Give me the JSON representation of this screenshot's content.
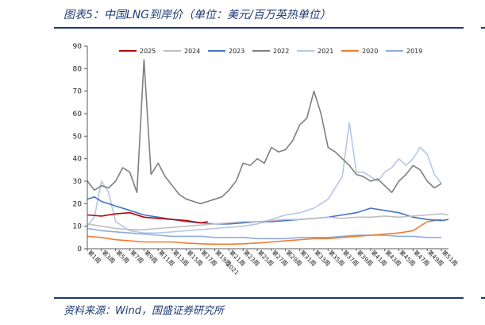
{
  "figure": {
    "title": "图表5：中国LNG到岸价（单位：美元/百万英热单位）",
    "source": "资料来源：Wind，国盛证券研究所"
  },
  "chart_data": {
    "type": "line",
    "title": "",
    "xlabel": "",
    "ylabel": "",
    "ylim": [
      0,
      90
    ],
    "yticks": [
      0,
      10,
      20,
      30,
      40,
      50,
      60,
      70,
      80,
      90
    ],
    "x": [
      1,
      3,
      5,
      7,
      9,
      11,
      13,
      15,
      17,
      19,
      21,
      23,
      25,
      27,
      29,
      31,
      33,
      35,
      37,
      39,
      41,
      43,
      45,
      47,
      49,
      51
    ],
    "x_tick_labels": [
      "第1周",
      "第3周",
      "第5周",
      "第7周",
      "第9周",
      "第11周",
      "第13周",
      "第15周",
      "第17周",
      "第19周",
      "第21周",
      "第23周",
      "第25周",
      "第27周",
      "第29周",
      "第31周",
      "第33周",
      "第35周",
      "第37周",
      "第39周",
      "第41周",
      "第43周",
      "第45周",
      "第47周",
      "第49周",
      "第51周"
    ],
    "x_overlay_text": "2021",
    "grid": false,
    "legend_position": "top",
    "series": [
      {
        "name": "2025",
        "color": "#c00000",
        "width": 1.6,
        "x": [
          1,
          3,
          5,
          7,
          9,
          11,
          13,
          15,
          17,
          18
        ],
        "values": [
          15,
          14.5,
          15.5,
          16,
          14,
          13.5,
          13,
          12.5,
          11.5,
          12
        ]
      },
      {
        "name": "2024",
        "color": "#bfbfbf",
        "width": 1.6,
        "x": [
          1,
          3,
          5,
          7,
          9,
          11,
          13,
          15,
          17,
          19,
          21,
          23,
          25,
          27,
          29,
          31,
          33,
          35,
          37,
          39,
          41,
          43,
          45,
          47,
          49,
          51,
          52
        ],
        "values": [
          11,
          10,
          9,
          8.5,
          8.5,
          9,
          9.5,
          10,
          10.5,
          11,
          11.5,
          12,
          12,
          12.5,
          13,
          13,
          13.5,
          14,
          13.5,
          14,
          14,
          14.5,
          14,
          14.5,
          15,
          15.5,
          15
        ]
      },
      {
        "name": "2023",
        "color": "#4472c4",
        "width": 1.6,
        "x": [
          1,
          2,
          3,
          5,
          7,
          9,
          11,
          13,
          15,
          17,
          19,
          21,
          23,
          25,
          27,
          29,
          31,
          33,
          35,
          37,
          39,
          41,
          43,
          45,
          47,
          49,
          51,
          52
        ],
        "values": [
          22,
          23,
          21,
          19,
          17,
          15,
          14,
          13,
          12,
          11.5,
          11,
          11,
          11.5,
          12,
          12,
          12.5,
          13,
          13.5,
          14,
          15,
          16,
          18,
          17,
          16,
          14,
          13,
          12.5,
          13
        ]
      },
      {
        "name": "2022",
        "color": "#7f7f7f",
        "width": 1.6,
        "x": [
          1,
          2,
          3,
          4,
          5,
          6,
          7,
          8,
          9,
          10,
          11,
          12,
          13,
          14,
          15,
          16,
          17,
          18,
          19,
          20,
          21,
          22,
          23,
          24,
          25,
          26,
          27,
          28,
          29,
          30,
          31,
          32,
          33,
          34,
          35,
          36,
          37,
          38,
          39,
          40,
          41,
          42,
          43,
          44,
          45,
          46,
          47,
          48,
          49,
          50,
          51
        ],
        "values": [
          30,
          26,
          28,
          27,
          30,
          36,
          34,
          25,
          84,
          33,
          38,
          32,
          28,
          24,
          22,
          21,
          20,
          21,
          22,
          23,
          26,
          30,
          38,
          37,
          40,
          38,
          45,
          43,
          44,
          48,
          55,
          58,
          70,
          60,
          45,
          43,
          40,
          37,
          33,
          32,
          30,
          31,
          28,
          25,
          30,
          33,
          37,
          35,
          30,
          27,
          29
        ]
      },
      {
        "name": "2021",
        "color": "#b4c7e7",
        "width": 1.6,
        "x": [
          1,
          2,
          3,
          4,
          5,
          7,
          9,
          11,
          13,
          15,
          17,
          19,
          21,
          23,
          25,
          27,
          29,
          31,
          33,
          35,
          37,
          38,
          39,
          40,
          41,
          42,
          43,
          44,
          45,
          46,
          47,
          48,
          49,
          50,
          51
        ],
        "values": [
          10,
          14,
          30,
          25,
          12,
          8,
          7,
          7,
          7.5,
          8,
          8.5,
          9,
          9.5,
          10,
          11,
          13,
          15,
          16,
          18,
          22,
          32,
          56,
          34,
          34,
          32,
          30,
          34,
          36,
          40,
          37,
          40,
          45,
          42,
          33,
          29
        ]
      },
      {
        "name": "2020",
        "color": "#ed7d31",
        "width": 1.6,
        "x": [
          1,
          3,
          5,
          7,
          9,
          11,
          13,
          15,
          17,
          19,
          21,
          23,
          25,
          27,
          29,
          31,
          33,
          35,
          37,
          39,
          41,
          43,
          45,
          47,
          49,
          51
        ],
        "values": [
          5.5,
          5,
          4,
          3.5,
          3,
          3,
          3,
          2.5,
          2.2,
          2,
          2,
          2.2,
          2.5,
          3,
          3.5,
          4,
          4.5,
          4.5,
          5,
          5.5,
          6,
          6.5,
          7,
          8,
          12,
          13
        ]
      },
      {
        "name": "2019",
        "color": "#8faadc",
        "width": 1.6,
        "x": [
          1,
          3,
          5,
          7,
          9,
          11,
          13,
          15,
          17,
          19,
          21,
          23,
          25,
          27,
          29,
          31,
          33,
          35,
          37,
          39,
          41,
          43,
          45,
          47,
          49,
          51
        ],
        "values": [
          9,
          8,
          7.5,
          7,
          6.5,
          6,
          5.5,
          5.5,
          5.5,
          5,
          5,
          5,
          4.5,
          4.5,
          4.5,
          5,
          5,
          5,
          5.5,
          6,
          6,
          6,
          5.5,
          5.5,
          5,
          5
        ]
      }
    ]
  }
}
